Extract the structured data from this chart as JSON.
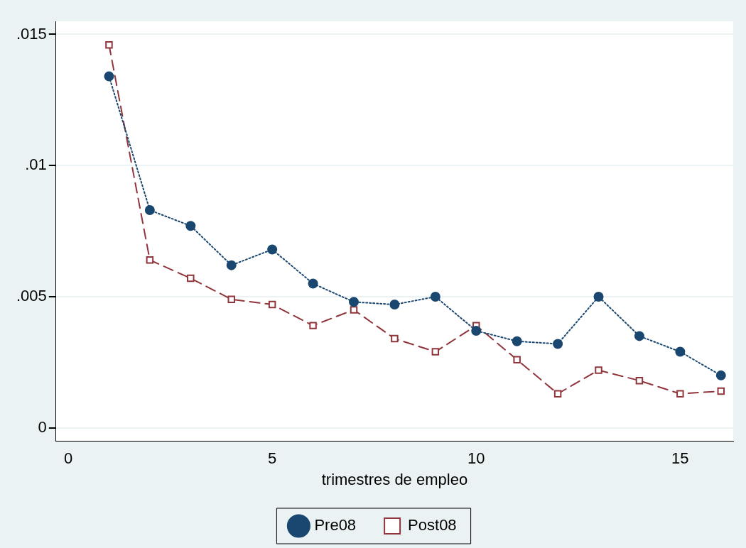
{
  "chart_data": {
    "type": "line",
    "xlabel": "trimestres de empleo",
    "x": [
      1,
      2,
      3,
      4,
      5,
      6,
      7,
      8,
      9,
      10,
      11,
      12,
      13,
      14,
      15,
      16
    ],
    "series": [
      {
        "name": "Pre08",
        "color": "#1a476f",
        "marker": "circle",
        "line_style": "dotted",
        "values": [
          0.0134,
          0.0083,
          0.0077,
          0.0062,
          0.0068,
          0.0055,
          0.0048,
          0.0047,
          0.005,
          0.0037,
          0.0033,
          0.0032,
          0.005,
          0.0035,
          0.0029,
          0.002
        ]
      },
      {
        "name": "Post08",
        "color": "#90353b",
        "marker": "square",
        "line_style": "dashed",
        "values": [
          0.0146,
          0.0064,
          0.0057,
          0.0049,
          0.0047,
          0.0039,
          0.0045,
          0.0034,
          0.0029,
          0.0039,
          0.0026,
          0.0013,
          0.0022,
          0.0018,
          0.0013,
          0.0014
        ]
      }
    ],
    "xlim": [
      -0.3,
      16.3
    ],
    "ylim": [
      -0.0005,
      0.0155
    ],
    "xticks": [
      0,
      5,
      10,
      15
    ],
    "yticks": [
      0,
      {
        "value": 0.005,
        "label": ".005"
      },
      {
        "value": 0.01,
        "label": ".01"
      },
      {
        "value": 0.015,
        "label": ".015"
      }
    ],
    "grid": "y",
    "legend": "bottom"
  }
}
